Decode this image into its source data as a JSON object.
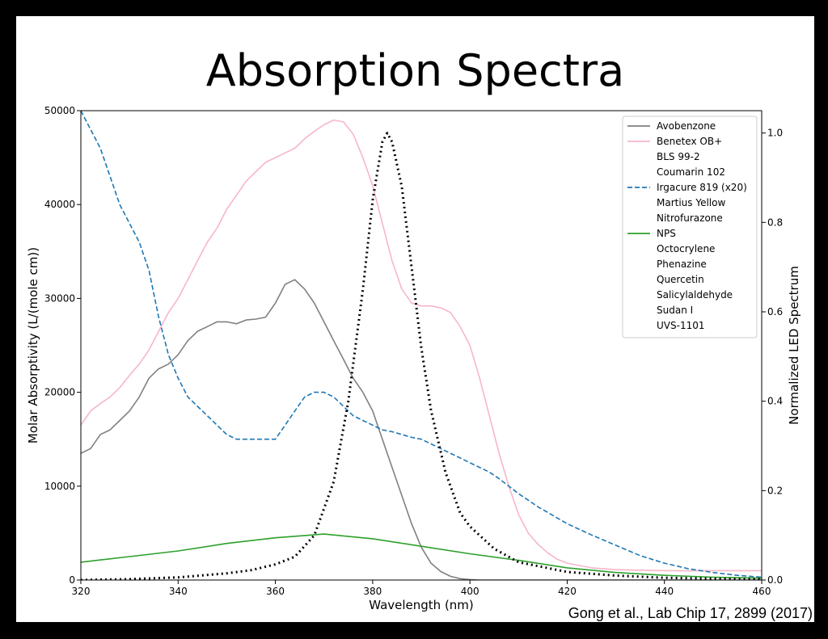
{
  "slide": {
    "title": "Absorption Spectra",
    "citation": "Gong et al., Lab Chip 17, 2899 (2017)"
  },
  "chart_data": {
    "type": "line",
    "xlabel": "Wavelength (nm)",
    "ylabel_left": "Molar Absorptivity (L/(mole cm))",
    "ylabel_right": "Normalized LED Spectrum",
    "xlim": [
      320,
      460
    ],
    "ylim_left": [
      0,
      50000
    ],
    "ylim_right": [
      0,
      1.05
    ],
    "x_ticks": [
      320,
      340,
      360,
      380,
      400,
      420,
      440,
      460
    ],
    "y_ticks_left": [
      0,
      10000,
      20000,
      30000,
      40000,
      50000
    ],
    "y_ticks_right": [
      0.0,
      0.2,
      0.4,
      0.6,
      0.8,
      1.0
    ],
    "y_ticks_right_labels": [
      "0.0",
      "0.2",
      "0.4",
      "0.6",
      "0.8",
      "1.0"
    ],
    "legend_position": "top-right",
    "legend": [
      {
        "name": "Avobenzone",
        "color": "#808080",
        "style": "solid"
      },
      {
        "name": "Benetex OB+",
        "color": "#f7b6c8",
        "style": "solid"
      },
      {
        "name": "BLS 99-2",
        "color": null,
        "style": "none"
      },
      {
        "name": "Coumarin 102",
        "color": null,
        "style": "none"
      },
      {
        "name": "Irgacure 819 (x20)",
        "color": "#1f77b4",
        "style": "dashed"
      },
      {
        "name": "Martius Yellow",
        "color": null,
        "style": "none"
      },
      {
        "name": "Nitrofurazone",
        "color": null,
        "style": "none"
      },
      {
        "name": "NPS",
        "color": "#2ca02c",
        "style": "solid"
      },
      {
        "name": "Octocrylene",
        "color": null,
        "style": "none"
      },
      {
        "name": "Phenazine",
        "color": null,
        "style": "none"
      },
      {
        "name": "Quercetin",
        "color": null,
        "style": "none"
      },
      {
        "name": "Salicylaldehyde",
        "color": null,
        "style": "none"
      },
      {
        "name": "Sudan I",
        "color": null,
        "style": "none"
      },
      {
        "name": "UVS-1101",
        "color": null,
        "style": "none"
      }
    ],
    "series": [
      {
        "name": "Avobenzone",
        "axis": "left",
        "color": "#808080",
        "style": "solid",
        "x": [
          320,
          322,
          324,
          326,
          328,
          330,
          332,
          334,
          336,
          338,
          340,
          342,
          344,
          346,
          348,
          350,
          352,
          354,
          356,
          358,
          360,
          362,
          364,
          366,
          368,
          370,
          372,
          374,
          376,
          378,
          380,
          382,
          384,
          386,
          388,
          390,
          392,
          394,
          396,
          398,
          400,
          402,
          404,
          406,
          410,
          420,
          440,
          460
        ],
        "values": [
          13500,
          14000,
          15500,
          16000,
          17000,
          18000,
          19500,
          21500,
          22500,
          23000,
          24000,
          25500,
          26500,
          27000,
          27500,
          27500,
          27300,
          27700,
          27800,
          28000,
          29500,
          31500,
          32000,
          31000,
          29500,
          27500,
          25500,
          23500,
          21500,
          20000,
          18000,
          15000,
          12000,
          9000,
          6000,
          3500,
          1800,
          900,
          400,
          150,
          50,
          0,
          0,
          0,
          0,
          0,
          0,
          0
        ]
      },
      {
        "name": "Benetex OB+",
        "axis": "left",
        "color": "#f7b6c8",
        "style": "solid",
        "x": [
          320,
          322,
          324,
          326,
          328,
          330,
          332,
          334,
          336,
          338,
          340,
          342,
          344,
          346,
          348,
          350,
          352,
          354,
          356,
          358,
          360,
          362,
          364,
          366,
          368,
          370,
          372,
          374,
          376,
          378,
          380,
          382,
          384,
          386,
          388,
          390,
          392,
          394,
          396,
          398,
          400,
          402,
          404,
          406,
          408,
          410,
          412,
          414,
          416,
          418,
          420,
          425,
          430,
          440,
          450,
          460
        ],
        "values": [
          16500,
          18000,
          18800,
          19500,
          20500,
          21800,
          23000,
          24500,
          26500,
          28500,
          30000,
          32000,
          34000,
          36000,
          37500,
          39500,
          41000,
          42500,
          43500,
          44500,
          45000,
          45500,
          46000,
          47000,
          47800,
          48500,
          49000,
          48800,
          47500,
          45000,
          42000,
          38000,
          34000,
          31000,
          29500,
          29200,
          29200,
          29000,
          28500,
          27000,
          25000,
          21500,
          17500,
          13500,
          10000,
          7000,
          5000,
          3800,
          2900,
          2200,
          1800,
          1300,
          1100,
          1000,
          1000,
          1000
        ]
      },
      {
        "name": "Irgacure 819 (x20)",
        "axis": "left",
        "color": "#1f77b4",
        "style": "dashed",
        "x": [
          320,
          322,
          324,
          326,
          328,
          330,
          332,
          334,
          336,
          338,
          340,
          342,
          344,
          346,
          348,
          350,
          352,
          354,
          356,
          358,
          360,
          362,
          364,
          366,
          368,
          370,
          372,
          374,
          376,
          378,
          380,
          382,
          384,
          386,
          388,
          390,
          392,
          394,
          396,
          398,
          400,
          402,
          404,
          406,
          408,
          410,
          412,
          414,
          416,
          418,
          420,
          425,
          430,
          435,
          440,
          445,
          450,
          455,
          460
        ],
        "values": [
          50000,
          48000,
          46000,
          43000,
          40000,
          38000,
          36000,
          33000,
          28000,
          24000,
          21500,
          19500,
          18500,
          17500,
          16500,
          15500,
          15000,
          15000,
          15000,
          15000,
          15000,
          16500,
          18000,
          19500,
          20000,
          20000,
          19500,
          18500,
          17500,
          17000,
          16500,
          16000,
          15800,
          15500,
          15200,
          15000,
          14500,
          14000,
          13500,
          13000,
          12500,
          12000,
          11500,
          10800,
          10000,
          9200,
          8500,
          7800,
          7200,
          6600,
          6000,
          4800,
          3700,
          2600,
          1800,
          1200,
          800,
          500,
          300
        ]
      },
      {
        "name": "NPS",
        "axis": "left",
        "color": "#2ca02c",
        "style": "solid",
        "x": [
          320,
          330,
          340,
          350,
          360,
          370,
          380,
          390,
          400,
          410,
          420,
          430,
          440,
          450,
          460
        ],
        "values": [
          1900,
          2500,
          3100,
          3900,
          4500,
          4900,
          4400,
          3600,
          2800,
          2100,
          1300,
          800,
          500,
          300,
          200
        ]
      },
      {
        "name": "LED Spectrum",
        "axis": "right",
        "color": "#000000",
        "style": "dotted",
        "x": [
          320,
          330,
          340,
          350,
          355,
          360,
          364,
          368,
          372,
          375,
          378,
          380,
          382,
          383,
          384,
          386,
          388,
          390,
          392,
          395,
          398,
          400,
          405,
          410,
          420,
          430,
          440,
          450,
          460
        ],
        "values": [
          0.0,
          0.002,
          0.006,
          0.015,
          0.022,
          0.035,
          0.052,
          0.1,
          0.22,
          0.4,
          0.65,
          0.85,
          0.98,
          1.0,
          0.98,
          0.88,
          0.7,
          0.52,
          0.38,
          0.24,
          0.15,
          0.12,
          0.07,
          0.04,
          0.018,
          0.01,
          0.005,
          0.003,
          0.002
        ]
      }
    ]
  }
}
